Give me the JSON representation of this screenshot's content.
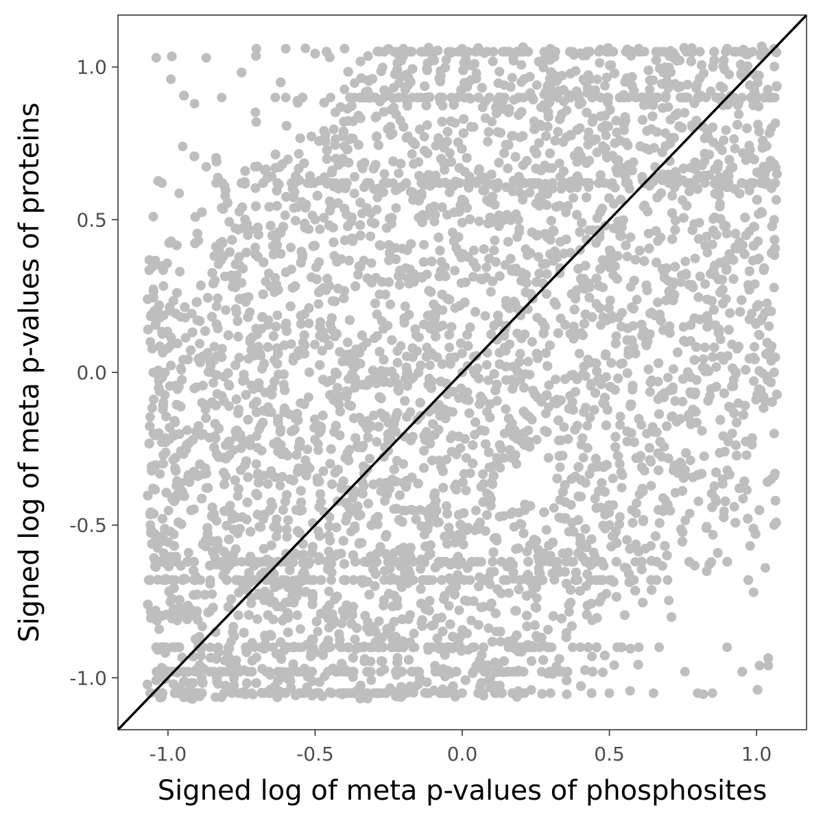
{
  "chart_data": {
    "type": "scatter",
    "title": "",
    "xlabel": "Signed log of meta p-values of phosphosites",
    "ylabel": "Signed log of meta p-values of proteins",
    "xlim": [
      -1.17,
      1.17
    ],
    "ylim": [
      -1.17,
      1.17
    ],
    "x_ticks": [
      -1.0,
      -0.5,
      0.0,
      0.5,
      1.0
    ],
    "y_ticks": [
      -1.0,
      -0.5,
      0.0,
      0.5,
      1.0
    ],
    "x_tick_labels": [
      "-1.0",
      "-0.5",
      "0.0",
      "0.5",
      "1.0"
    ],
    "y_tick_labels": [
      "-1.0",
      "-0.5",
      "0.0",
      "0.5",
      "1.0"
    ],
    "grid": false,
    "legend": "none",
    "point_color": "#bebebe",
    "reference_line": {
      "type": "identity",
      "slope": 1,
      "intercept": 0,
      "color": "#000000"
    },
    "point_density": "very dense, roughly uniform over [-1.07, 1.07] on both axes, sparser in the top-left and bottom-right corners, with horizontal banding near y = ±0.6, ±0.9 and ±1.05",
    "sample_points": [
      [
        -1.04,
        1.03
      ],
      [
        -0.99,
        0.96
      ],
      [
        -0.87,
        1.03
      ],
      [
        -0.91,
        0.88
      ],
      [
        -0.95,
        0.74
      ],
      [
        -1.02,
        0.62
      ],
      [
        -1.05,
        0.51
      ],
      [
        -0.96,
        0.33
      ],
      [
        -1.03,
        0.22
      ],
      [
        -1.06,
        0.1
      ],
      [
        -0.7,
        1.06
      ],
      [
        -0.6,
        1.06
      ],
      [
        -0.4,
        1.06
      ],
      [
        -0.2,
        1.06
      ],
      [
        0.0,
        1.06
      ],
      [
        0.3,
        1.06
      ],
      [
        0.6,
        1.06
      ],
      [
        0.9,
        1.06
      ],
      [
        1.06,
        1.06
      ],
      [
        1.05,
        0.8
      ],
      [
        1.06,
        0.5
      ],
      [
        1.05,
        0.2
      ],
      [
        1.06,
        0.0
      ],
      [
        1.06,
        -0.2
      ],
      [
        1.05,
        -0.35
      ],
      [
        1.06,
        -0.5
      ],
      [
        1.03,
        -0.64
      ],
      [
        0.99,
        -0.72
      ],
      [
        1.01,
        -0.96
      ],
      [
        1.04,
        -0.96
      ],
      [
        0.9,
        -0.9
      ],
      [
        0.85,
        -1.05
      ],
      [
        0.8,
        -1.05
      ],
      [
        0.65,
        -1.05
      ],
      [
        0.5,
        -1.05
      ],
      [
        0.3,
        -1.05
      ],
      [
        0.0,
        -1.05
      ],
      [
        -0.3,
        -1.05
      ],
      [
        -0.6,
        -1.05
      ],
      [
        -0.9,
        -1.05
      ],
      [
        -1.06,
        -1.05
      ],
      [
        -1.05,
        -0.8
      ],
      [
        -1.06,
        -0.5
      ],
      [
        -1.05,
        -0.2
      ],
      [
        -1.05,
        0.0
      ],
      [
        -0.5,
        0.5
      ],
      [
        0.5,
        -0.5
      ],
      [
        0.0,
        0.0
      ],
      [
        -0.3,
        0.6
      ],
      [
        0.3,
        -0.6
      ],
      [
        0.7,
        0.3
      ],
      [
        -0.7,
        -0.3
      ],
      [
        0.4,
        0.8
      ],
      [
        -0.4,
        -0.8
      ],
      [
        0.8,
        0.6
      ],
      [
        -0.8,
        -0.6
      ],
      [
        0.2,
        0.3
      ],
      [
        -0.2,
        -0.3
      ],
      [
        0.6,
        -0.9
      ],
      [
        -0.6,
        0.9
      ]
    ]
  }
}
